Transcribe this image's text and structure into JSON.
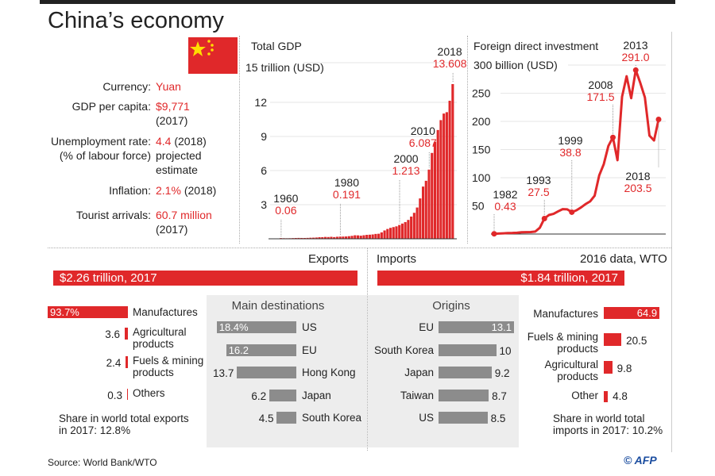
{
  "title": "China’s economy",
  "colors": {
    "accent": "#e0282a",
    "gray_bar": "#8c8c8c",
    "panel": "#ededed",
    "flag_star": "#ffde00"
  },
  "facts": [
    {
      "label": "Currency:",
      "value": "Yuan",
      "note": ""
    },
    {
      "label": "GDP per capita:",
      "value": "$9,771",
      "note": "(2017)"
    },
    {
      "label": "Unemployment rate:",
      "label2": "(% of labour force)",
      "value": "4.4",
      "note": "(2018)",
      "note2": "projected",
      "note3": "estimate"
    },
    {
      "label": "Inflation:",
      "value": "2.1%",
      "note": "(2018)"
    },
    {
      "label": "Tourist arrivals:",
      "value": "60.7 million",
      "note": "(2017)"
    }
  ],
  "chart_data": [
    {
      "type": "bar",
      "title": "Total GDP",
      "ylabel": "trillion (USD)",
      "ylim": [
        0,
        15
      ],
      "yticks": [
        "3",
        "6",
        "9",
        "12",
        "15"
      ],
      "x": [
        1960,
        1961,
        1962,
        1963,
        1964,
        1965,
        1966,
        1967,
        1968,
        1969,
        1970,
        1971,
        1972,
        1973,
        1974,
        1975,
        1976,
        1977,
        1978,
        1979,
        1980,
        1981,
        1982,
        1983,
        1984,
        1985,
        1986,
        1987,
        1988,
        1989,
        1990,
        1991,
        1992,
        1993,
        1994,
        1995,
        1996,
        1997,
        1998,
        1999,
        2000,
        2001,
        2002,
        2003,
        2004,
        2005,
        2006,
        2007,
        2008,
        2009,
        2010,
        2011,
        2012,
        2013,
        2014,
        2015,
        2016,
        2017,
        2018
      ],
      "values": [
        0.06,
        0.05,
        0.047,
        0.051,
        0.059,
        0.07,
        0.076,
        0.072,
        0.071,
        0.079,
        0.093,
        0.1,
        0.114,
        0.139,
        0.144,
        0.163,
        0.154,
        0.175,
        0.149,
        0.178,
        0.191,
        0.196,
        0.205,
        0.23,
        0.26,
        0.309,
        0.301,
        0.273,
        0.312,
        0.348,
        0.361,
        0.383,
        0.427,
        0.444,
        0.564,
        0.734,
        0.864,
        0.962,
        1.029,
        1.094,
        1.213,
        1.339,
        1.471,
        1.66,
        1.955,
        2.286,
        2.752,
        3.55,
        4.594,
        5.102,
        6.087,
        7.552,
        8.532,
        9.57,
        10.439,
        11.016,
        11.138,
        12.144,
        13.608
      ],
      "annotations": [
        {
          "year": "1960",
          "value": "0.06"
        },
        {
          "year": "1980",
          "value": "0.191"
        },
        {
          "year": "2000",
          "value": "1.213"
        },
        {
          "year": "2010",
          "value": "6.087"
        },
        {
          "year": "2018",
          "value": "13.608"
        }
      ]
    },
    {
      "type": "line",
      "title": "Foreign direct investment",
      "ylabel": "billion (USD)",
      "ylim": [
        0,
        300
      ],
      "yticks": [
        "50",
        "100",
        "150",
        "200",
        "250",
        "300"
      ],
      "x": [
        1982,
        1983,
        1984,
        1985,
        1986,
        1987,
        1988,
        1989,
        1990,
        1991,
        1992,
        1993,
        1994,
        1995,
        1996,
        1997,
        1998,
        1999,
        2000,
        2001,
        2002,
        2003,
        2004,
        2005,
        2006,
        2007,
        2008,
        2009,
        2010,
        2011,
        2012,
        2013,
        2014,
        2015,
        2016,
        2017,
        2018
      ],
      "values": [
        0.43,
        0.9,
        1.3,
        1.7,
        1.9,
        2.3,
        3.2,
        3.4,
        3.5,
        4.4,
        11.2,
        27.5,
        33.8,
        35.8,
        40.2,
        44.2,
        43.8,
        38.8,
        42.1,
        47.1,
        53.1,
        57.9,
        68.1,
        104.1,
        124.1,
        156.2,
        171.5,
        131.1,
        243.7,
        280.1,
        241.2,
        291.0,
        268.1,
        242.5,
        174.7,
        166.1,
        203.5
      ],
      "annotations": [
        {
          "year": "1982",
          "value": "0.43"
        },
        {
          "year": "1993",
          "value": "27.5"
        },
        {
          "year": "1999",
          "value": "38.8"
        },
        {
          "year": "2008",
          "value": "171.5"
        },
        {
          "year": "2013",
          "value": "291.0"
        },
        {
          "year": "2018",
          "value": "203.5"
        }
      ]
    }
  ],
  "exports": {
    "heading": "Exports",
    "total": "$2.26 trillion, 2017",
    "composition": [
      {
        "label": "Manufactures",
        "value": 93.7,
        "text": "93.7%"
      },
      {
        "label": "Agricultural products",
        "value": 3.6,
        "text": "3.6"
      },
      {
        "label": "Fuels & mining products",
        "value": 2.4,
        "text": "2.4"
      },
      {
        "label": "Others",
        "value": 0.3,
        "text": "0.3"
      }
    ],
    "share": "Share in world total exports in 2017: 12.8%",
    "destinations_title": "Main destinations",
    "destinations": [
      {
        "label": "US",
        "value": 18.4,
        "text": "18.4%"
      },
      {
        "label": "EU",
        "value": 16.2,
        "text": "16.2"
      },
      {
        "label": "Hong Kong",
        "value": 13.7,
        "text": "13.7"
      },
      {
        "label": "Japan",
        "value": 6.2,
        "text": "6.2"
      },
      {
        "label": "South Korea",
        "value": 4.5,
        "text": "4.5"
      }
    ]
  },
  "imports": {
    "heading": "Imports",
    "note": "2016 data, WTO",
    "total": "$1.84 trillion, 2017",
    "origins_title": "Origins",
    "origins": [
      {
        "label": "EU",
        "value": 13.1,
        "text": "13.1"
      },
      {
        "label": "South Korea",
        "value": 10,
        "text": "10"
      },
      {
        "label": "Japan",
        "value": 9.2,
        "text": "9.2"
      },
      {
        "label": "Taiwan",
        "value": 8.7,
        "text": "8.7"
      },
      {
        "label": "US",
        "value": 8.5,
        "text": "8.5"
      }
    ],
    "composition": [
      {
        "label": "Manufactures",
        "value": 64.9,
        "text": "64.9"
      },
      {
        "label": "Fuels & mining products",
        "value": 20.5,
        "text": "20.5"
      },
      {
        "label": "Agricultural products",
        "value": 9.8,
        "text": "9.8"
      },
      {
        "label": "Other",
        "value": 4.8,
        "text": "4.8"
      }
    ],
    "share": "Share in world total imports in 2017: 10.2%"
  },
  "source": "Source: World Bank/WTO",
  "credit": "© AFP"
}
